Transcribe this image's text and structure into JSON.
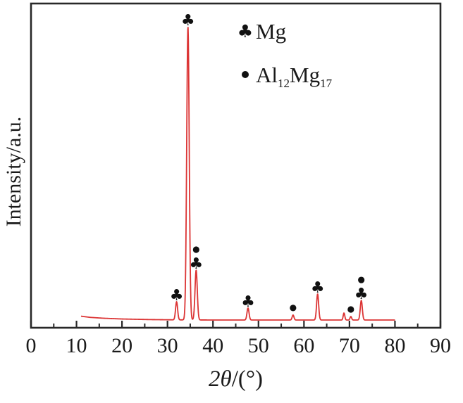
{
  "figure": {
    "background": "#ffffff",
    "frame_color": "#282828",
    "text_color": "#1a1a1a"
  },
  "axes": {
    "x_label_italic": "2θ",
    "x_label_rest": "/(°)",
    "x_label_full": "2θ/(°)",
    "y_label": "Intensity/a.u.",
    "x_range": [
      0,
      90
    ],
    "x_ticks": [
      0,
      10,
      20,
      30,
      40,
      50,
      60,
      70,
      80,
      90
    ],
    "x_minor_step": 5,
    "y_ticks": []
  },
  "legend": {
    "entries": [
      {
        "marker": "club",
        "phase": "Mg",
        "label_parts": [
          {
            "t": "Mg"
          }
        ]
      },
      {
        "marker": "circle",
        "phase": "Al12Mg17",
        "label_parts": [
          {
            "t": "Al"
          },
          {
            "sub": "12"
          },
          {
            "t": "Mg"
          },
          {
            "sub": "17"
          }
        ]
      }
    ]
  },
  "chart_data": {
    "type": "line",
    "title": "",
    "xlabel": "2θ/(°)",
    "ylabel": "Intensity/a.u.",
    "x_range": [
      0,
      90
    ],
    "y_unit": "arbitrary (max peak = 1000)",
    "grid": false,
    "legend_position": "upper-center-right inside plot",
    "line_color": "#dc3535",
    "marker_color": "#111111",
    "line_x_start": 11,
    "line_x_end": 80,
    "baseline_drift": [
      [
        11,
        13
      ],
      [
        13,
        9
      ],
      [
        16,
        6
      ],
      [
        20,
        3.5
      ],
      [
        26,
        1.5
      ],
      [
        32,
        0.5
      ],
      [
        40,
        0
      ]
    ],
    "phase_markers": {
      "Mg": "club",
      "Al12Mg17": "circle"
    },
    "peaks": [
      {
        "two_theta": 32.0,
        "intensity": 62,
        "width": 0.9,
        "phases": [
          "Mg"
        ]
      },
      {
        "two_theta": 34.5,
        "intensity": 1000,
        "width": 1.1,
        "phases": [
          "Mg"
        ]
      },
      {
        "two_theta": 36.3,
        "intensity": 170,
        "width": 1.0,
        "phases": [
          "Mg",
          "Al12Mg17"
        ]
      },
      {
        "two_theta": 47.7,
        "intensity": 41,
        "width": 0.9,
        "phases": [
          "Mg"
        ]
      },
      {
        "two_theta": 57.6,
        "intensity": 17,
        "width": 0.8,
        "phases": [
          "Al12Mg17"
        ]
      },
      {
        "two_theta": 63.0,
        "intensity": 89,
        "width": 0.9,
        "phases": [
          "Mg"
        ]
      },
      {
        "two_theta": 68.8,
        "intensity": 24,
        "width": 0.7,
        "phases": []
      },
      {
        "two_theta": 70.3,
        "intensity": 12,
        "width": 0.7,
        "phases": [
          "Al12Mg17"
        ]
      },
      {
        "two_theta": 72.6,
        "intensity": 67,
        "width": 0.9,
        "phases": [
          "Mg",
          "Al12Mg17"
        ]
      }
    ]
  }
}
